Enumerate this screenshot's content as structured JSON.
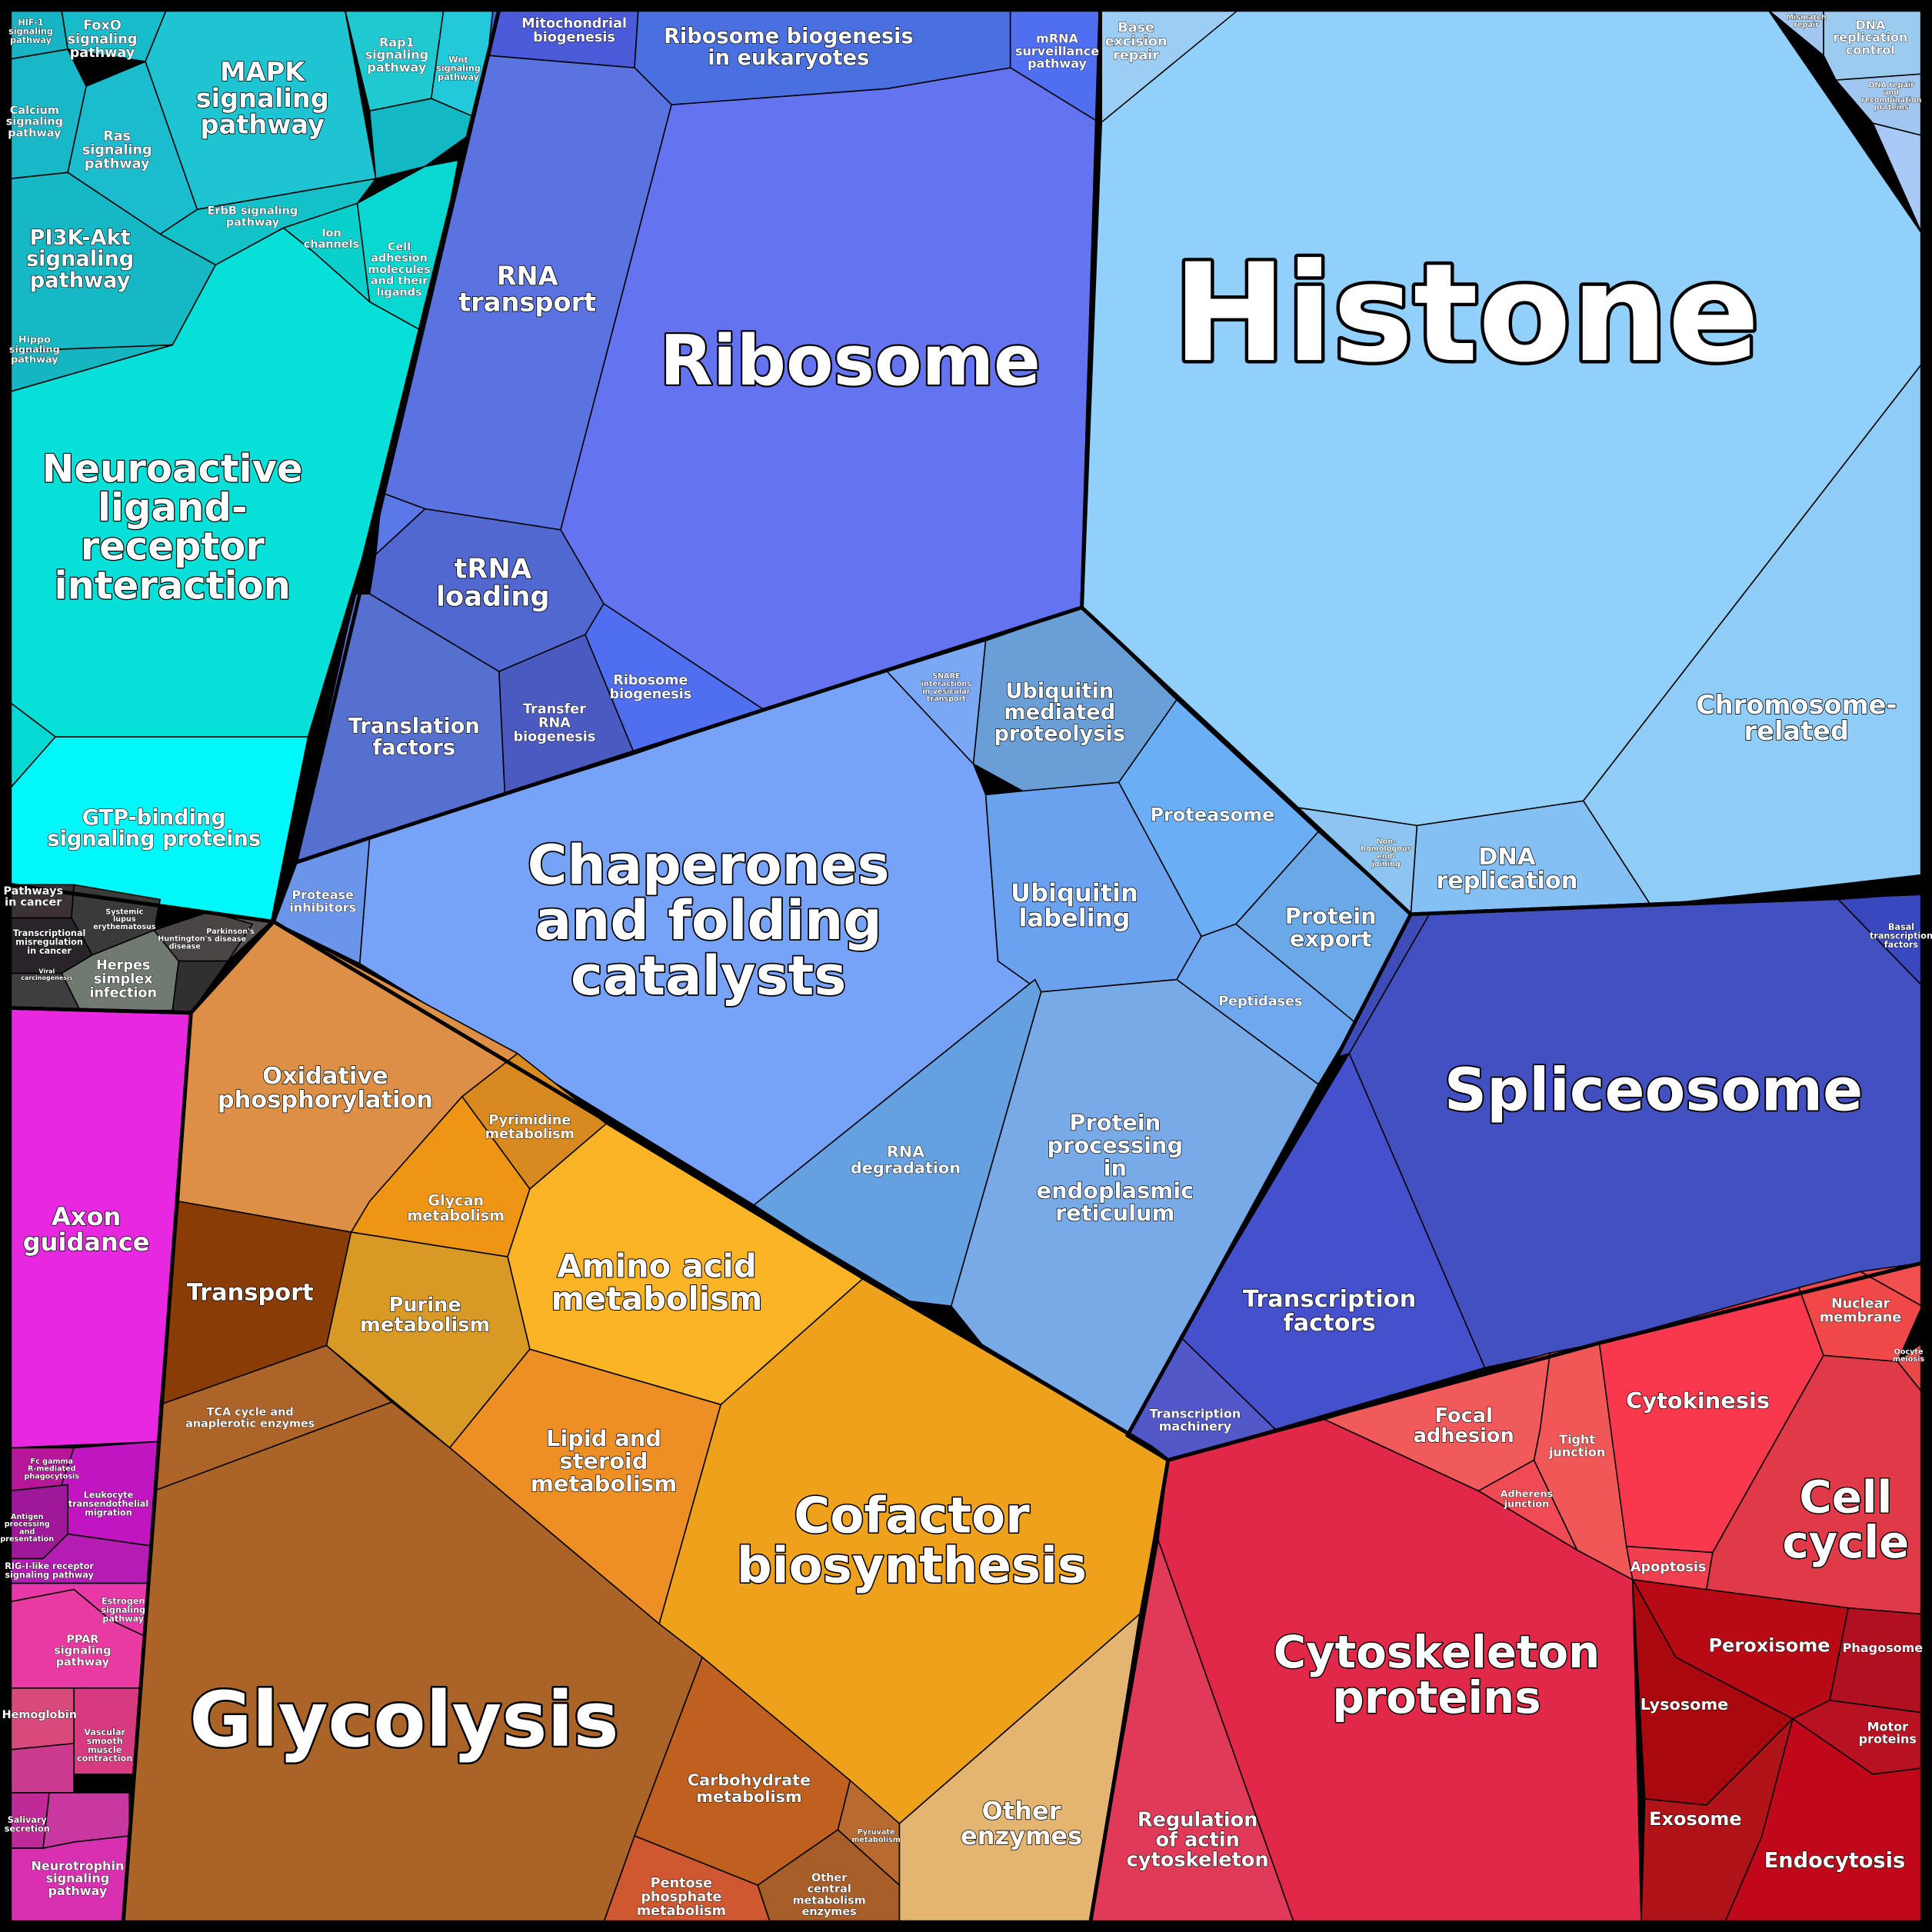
{
  "cells": [
    {
      "label": [
        "Histone"
      ]
    },
    {
      "label": [
        "Ribosome"
      ]
    },
    {
      "label": [
        "Chaperones",
        "and folding",
        "catalysts"
      ]
    },
    {
      "label": [
        "Spliceosome"
      ]
    },
    {
      "label": [
        "Glycolysis"
      ]
    },
    {
      "label": [
        "Cofactor",
        "biosynthesis"
      ]
    },
    {
      "label": [
        "Cytoskeleton",
        "proteins"
      ]
    },
    {
      "label": [
        "Cell",
        "cycle"
      ]
    },
    {
      "label": [
        "RNA",
        "transport"
      ]
    },
    {
      "label": [
        "tRNA",
        "loading"
      ]
    },
    {
      "label": [
        "Translation",
        "factors"
      ]
    },
    {
      "label": [
        "Transfer",
        "RNA",
        "biogenesis"
      ]
    },
    {
      "label": [
        "Ribosome",
        "biogenesis"
      ]
    },
    {
      "label": [
        "Ribosome biogenesis",
        "in eukaryotes"
      ]
    },
    {
      "label": [
        "Mitochondrial",
        "biogenesis"
      ]
    },
    {
      "label": [
        "mRNA",
        "surveillance",
        "pathway"
      ]
    },
    {
      "label": [
        "Base",
        "excision",
        "repair"
      ]
    },
    {
      "label": [
        "DNA",
        "replication",
        "control"
      ]
    },
    {
      "label": [
        "Chromosome-",
        "related"
      ]
    },
    {
      "label": [
        "DNA",
        "replication"
      ]
    },
    {
      "label": [
        "Ubiquitin",
        "mediated",
        "proteolysis"
      ]
    },
    {
      "label": [
        "Proteasome"
      ]
    },
    {
      "label": [
        "Ubiquitin",
        "labeling"
      ]
    },
    {
      "label": [
        "Protein",
        "export"
      ]
    },
    {
      "label": [
        "Peptidases"
      ]
    },
    {
      "label": [
        "RNA",
        "degradation"
      ]
    },
    {
      "label": [
        "Protein",
        "processing",
        "in",
        "endoplasmic",
        "reticulum"
      ]
    },
    {
      "label": [
        "Protease",
        "inhibitors"
      ]
    },
    {
      "label": [
        "Transcription",
        "factors"
      ]
    },
    {
      "label": [
        "Transcription",
        "machinery"
      ]
    },
    {
      "label": [
        "Basal",
        "transcription",
        "factors"
      ]
    },
    {
      "label": [
        "Neuroactive",
        "ligand-",
        "receptor",
        "interaction"
      ]
    },
    {
      "label": [
        "GTP-binding",
        "signaling proteins"
      ]
    },
    {
      "label": [
        "MAPK",
        "signaling",
        "pathway"
      ]
    },
    {
      "label": [
        "PI3K-Akt",
        "signaling",
        "pathway"
      ]
    },
    {
      "label": [
        "Ras",
        "signaling",
        "pathway"
      ]
    },
    {
      "label": [
        "FoxO",
        "signaling",
        "pathway"
      ]
    },
    {
      "label": [
        "Calcium",
        "signaling",
        "pathway"
      ]
    },
    {
      "label": [
        "HIF-1",
        "signaling",
        "pathway"
      ]
    },
    {
      "label": [
        "Rap1",
        "signaling",
        "pathway"
      ]
    },
    {
      "label": [
        "Wnt",
        "signaling",
        "pathway"
      ]
    },
    {
      "label": [
        "ErbB signaling",
        "pathway"
      ]
    },
    {
      "label": [
        "Ion",
        "channels"
      ]
    },
    {
      "label": [
        "Cell",
        "adhesion",
        "molecules",
        "and their",
        "ligands"
      ]
    },
    {
      "label": [
        "Hippo",
        "signaling",
        "pathway"
      ]
    },
    {
      "label": [
        "Pathways",
        "in cancer"
      ]
    },
    {
      "label": [
        "Transcriptional",
        "misregulation",
        "in cancer"
      ]
    },
    {
      "label": [
        "Herpes",
        "simplex",
        "infection"
      ]
    },
    {
      "label": [
        "Huntington's",
        "disease"
      ]
    },
    {
      "label": [
        "Parkinson's",
        "disease"
      ]
    },
    {
      "label": [
        "Systemic",
        "lupus",
        "erythematosus"
      ]
    },
    {
      "label": [
        "Axon",
        "guidance"
      ]
    },
    {
      "label": [
        "Leukocyte",
        "transendothelial",
        "migration"
      ]
    },
    {
      "label": [
        "RIG-I-like receptor",
        "signaling pathway"
      ]
    },
    {
      "label": [
        "PPAR",
        "signaling",
        "pathway"
      ]
    },
    {
      "label": [
        "Estrogen",
        "signaling",
        "pathway"
      ]
    },
    {
      "label": [
        "Hemoglobin"
      ]
    },
    {
      "label": [
        "Vascular",
        "smooth",
        "muscle",
        "contraction"
      ]
    },
    {
      "label": [
        "Salivary",
        "secretion"
      ]
    },
    {
      "label": [
        "Neurotrophin",
        "signaling",
        "pathway"
      ]
    },
    {
      "label": [
        "Oxidative",
        "phosphorylation"
      ]
    },
    {
      "label": [
        "Pyrimidine",
        "metabolism"
      ]
    },
    {
      "label": [
        "Glycan",
        "metabolism"
      ]
    },
    {
      "label": [
        "Amino acid",
        "metabolism"
      ]
    },
    {
      "label": [
        "Transport"
      ]
    },
    {
      "label": [
        "Purine",
        "metabolism"
      ]
    },
    {
      "label": [
        "TCA cycle and",
        "anaplerotic enzymes"
      ]
    },
    {
      "label": [
        "Lipid and",
        "steroid",
        "metabolism"
      ]
    },
    {
      "label": [
        "Carbohydrate",
        "metabolism"
      ]
    },
    {
      "label": [
        "Pentose",
        "phosphate",
        "metabolism"
      ]
    },
    {
      "label": [
        "Other",
        "central",
        "metabolism",
        "enzymes"
      ]
    },
    {
      "label": [
        "Pyruvate",
        "metabolism"
      ]
    },
    {
      "label": [
        "Other",
        "enzymes"
      ]
    },
    {
      "label": [
        "Focal",
        "adhesion"
      ]
    },
    {
      "label": [
        "Tight",
        "junction"
      ]
    },
    {
      "label": [
        "Adherens",
        "junction"
      ]
    },
    {
      "label": [
        "Cytokinesis"
      ]
    },
    {
      "label": [
        "Nuclear",
        "membrane"
      ]
    },
    {
      "label": [
        "Oocyte",
        "meiosis"
      ]
    },
    {
      "label": [
        "Apoptosis"
      ]
    },
    {
      "label": [
        "Peroxisome"
      ]
    },
    {
      "label": [
        "Phagosome"
      ]
    },
    {
      "label": [
        "Lysosome"
      ]
    },
    {
      "label": [
        "Motor",
        "proteins"
      ]
    },
    {
      "label": [
        "Exosome"
      ]
    },
    {
      "label": [
        "Endocytosis"
      ]
    },
    {
      "label": [
        "Regulation",
        "of actin",
        "cytoskeleton"
      ]
    },
    {
      "label": [
        "Mismatch",
        "repair"
      ]
    },
    {
      "label": [
        "DNA repair",
        "and",
        "recombination",
        "proteins"
      ]
    },
    {
      "label": [
        "Non-",
        "homologous",
        "end-",
        "joining"
      ]
    },
    {
      "label": [
        "SNARE",
        "interactions",
        "in vesicular",
        "transport"
      ]
    },
    {
      "label": [
        "Antigen",
        "processing",
        "and",
        "presentation"
      ]
    },
    {
      "label": [
        "Fc gamma",
        "R-mediated",
        "phagocytosis"
      ]
    },
    {
      "label": [
        "Viral",
        "carcinogenesis"
      ]
    }
  ]
}
